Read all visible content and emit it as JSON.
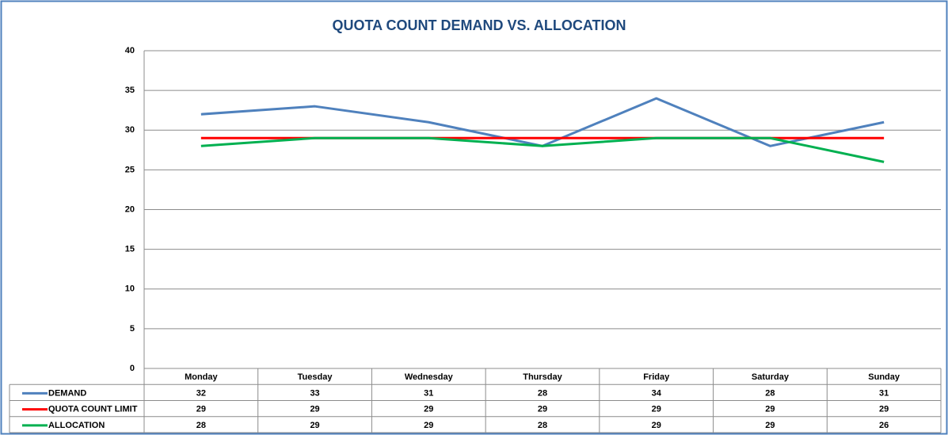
{
  "chart_data": {
    "type": "line",
    "title": "QUOTA COUNT DEMAND VS. ALLOCATION",
    "categories": [
      "Monday",
      "Tuesday",
      "Wednesday",
      "Thursday",
      "Friday",
      "Saturday",
      "Sunday"
    ],
    "series": [
      {
        "name": "DEMAND",
        "color": "#4f81bd",
        "values": [
          32,
          33,
          31,
          28,
          34,
          28,
          31
        ]
      },
      {
        "name": "QUOTA COUNT LIMIT",
        "color": "#ff0000",
        "values": [
          29,
          29,
          29,
          29,
          29,
          29,
          29
        ]
      },
      {
        "name": "ALLOCATION",
        "color": "#00b050",
        "values": [
          28,
          29,
          29,
          28,
          29,
          29,
          26
        ]
      }
    ],
    "ylim": [
      0,
      40
    ],
    "yticks": [
      0,
      5,
      10,
      15,
      20,
      25,
      30,
      35,
      40
    ],
    "grid": true,
    "data_table": true
  }
}
